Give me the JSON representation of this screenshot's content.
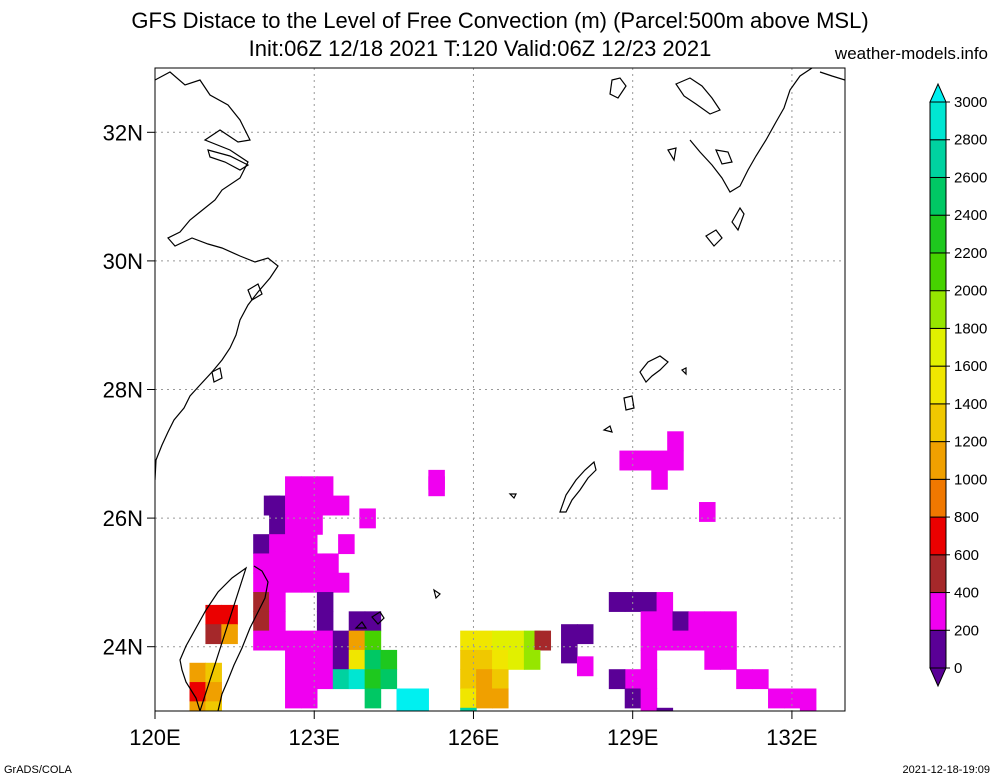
{
  "title_line1": "GFS Distace to the Level of Free Convection (m) (Parcel:500m above MSL)",
  "title_line2": "Init:06Z 12/18 2021 T:120 Valid:06Z 12/23 2021",
  "site": "weather-models.info",
  "footer_left": "GrADS/COLA",
  "footer_right": "2021-12-18-19:09",
  "chart_data": {
    "type": "heatmap",
    "title": "GFS Distace to the Level of Free Convection (m) (Parcel:500m above MSL)",
    "subtitle": "Init:06Z 12/18 2021 T:120 Valid:06Z 12/23 2021",
    "x_axis": {
      "range": [
        120,
        133
      ],
      "ticks": [
        120,
        123,
        126,
        129,
        132
      ],
      "tick_labels": [
        "120E",
        "123E",
        "126E",
        "129E",
        "132E"
      ]
    },
    "y_axis": {
      "range": [
        23,
        33
      ],
      "ticks": [
        24,
        26,
        28,
        30,
        32
      ],
      "tick_labels": [
        "24N",
        "26N",
        "28N",
        "30N",
        "32N"
      ]
    },
    "grid": true,
    "colorbar": {
      "placement": "right",
      "levels": [
        0,
        200,
        400,
        600,
        800,
        1000,
        1200,
        1400,
        1600,
        1800,
        2000,
        2200,
        2400,
        2600,
        2800,
        3000
      ],
      "tick_labels": [
        "0",
        "200",
        "400",
        "600",
        "800",
        "1000",
        "1200",
        "1400",
        "1600",
        "1800",
        "2000",
        "2200",
        "2400",
        "2600",
        "2800",
        "3000"
      ],
      "colors": [
        "#5a0096",
        "#f000f0",
        "#a5282a",
        "#eb0000",
        "#f07800",
        "#f0a000",
        "#f0c800",
        "#f0e600",
        "#e1f000",
        "#96e600",
        "#46d200",
        "#1ec81e",
        "#00c864",
        "#00d2a0",
        "#00e6d2",
        "#00f0f0"
      ]
    },
    "cells": [
      {
        "lon": 122.6,
        "lat": 26.5,
        "value": 200
      },
      {
        "lon": 122.9,
        "lat": 26.5,
        "value": 200
      },
      {
        "lon": 123.2,
        "lat": 26.5,
        "value": 300
      },
      {
        "lon": 122.3,
        "lat": 26.2,
        "value": 100
      },
      {
        "lon": 122.6,
        "lat": 26.2,
        "value": 200
      },
      {
        "lon": 122.9,
        "lat": 26.2,
        "value": 200
      },
      {
        "lon": 123.2,
        "lat": 26.2,
        "value": 200
      },
      {
        "lon": 123.5,
        "lat": 26.2,
        "value": 200
      },
      {
        "lon": 122.3,
        "lat": 25.9,
        "value": 100
      },
      {
        "lon": 122.6,
        "lat": 25.9,
        "value": 200
      },
      {
        "lon": 122.9,
        "lat": 25.9,
        "value": 200
      },
      {
        "lon": 122.0,
        "lat": 25.6,
        "value": 100
      },
      {
        "lon": 122.3,
        "lat": 25.6,
        "value": 200
      },
      {
        "lon": 122.6,
        "lat": 25.6,
        "value": 200
      },
      {
        "lon": 122.9,
        "lat": 25.6,
        "value": 200
      },
      {
        "lon": 122.0,
        "lat": 25.3,
        "value": 200
      },
      {
        "lon": 122.3,
        "lat": 25.3,
        "value": 300
      },
      {
        "lon": 122.6,
        "lat": 25.3,
        "value": 200
      },
      {
        "lon": 122.9,
        "lat": 25.3,
        "value": 200
      },
      {
        "lon": 123.2,
        "lat": 25.3,
        "value": 200
      },
      {
        "lon": 122.0,
        "lat": 25.0,
        "value": 300
      },
      {
        "lon": 122.3,
        "lat": 25.0,
        "value": 300
      },
      {
        "lon": 122.6,
        "lat": 25.0,
        "value": 300
      },
      {
        "lon": 122.9,
        "lat": 25.0,
        "value": 200
      },
      {
        "lon": 123.2,
        "lat": 25.0,
        "value": 200
      },
      {
        "lon": 123.5,
        "lat": 25.0,
        "value": 200
      },
      {
        "lon": 122.0,
        "lat": 24.7,
        "value": 500
      },
      {
        "lon": 122.3,
        "lat": 24.7,
        "value": 300
      },
      {
        "lon": 123.2,
        "lat": 24.7,
        "value": 100
      },
      {
        "lon": 122.0,
        "lat": 24.4,
        "value": 400
      },
      {
        "lon": 122.3,
        "lat": 24.4,
        "value": 300
      },
      {
        "lon": 123.2,
        "lat": 24.4,
        "value": 100
      },
      {
        "lon": 123.8,
        "lat": 24.4,
        "value": 100
      },
      {
        "lon": 124.1,
        "lat": 24.4,
        "value": 100
      },
      {
        "lon": 122.0,
        "lat": 24.1,
        "value": 300
      },
      {
        "lon": 122.3,
        "lat": 24.1,
        "value": 300
      },
      {
        "lon": 122.6,
        "lat": 24.1,
        "value": 200
      },
      {
        "lon": 122.9,
        "lat": 24.1,
        "value": 200
      },
      {
        "lon": 123.2,
        "lat": 24.1,
        "value": 200
      },
      {
        "lon": 123.5,
        "lat": 24.1,
        "value": 100
      },
      {
        "lon": 123.8,
        "lat": 24.1,
        "value": 1000
      },
      {
        "lon": 124.1,
        "lat": 24.1,
        "value": 2000
      },
      {
        "lon": 122.6,
        "lat": 23.8,
        "value": 300
      },
      {
        "lon": 122.9,
        "lat": 23.8,
        "value": 200
      },
      {
        "lon": 123.2,
        "lat": 23.8,
        "value": 200
      },
      {
        "lon": 123.5,
        "lat": 23.8,
        "value": 100
      },
      {
        "lon": 123.8,
        "lat": 23.8,
        "value": 1400
      },
      {
        "lon": 124.1,
        "lat": 23.8,
        "value": 2400
      },
      {
        "lon": 124.4,
        "lat": 23.8,
        "value": 2200
      },
      {
        "lon": 122.6,
        "lat": 23.5,
        "value": 300
      },
      {
        "lon": 122.9,
        "lat": 23.5,
        "value": 300
      },
      {
        "lon": 123.2,
        "lat": 23.5,
        "value": 200
      },
      {
        "lon": 123.5,
        "lat": 23.5,
        "value": 2600
      },
      {
        "lon": 123.8,
        "lat": 23.5,
        "value": 2800
      },
      {
        "lon": 124.1,
        "lat": 23.5,
        "value": 2200
      },
      {
        "lon": 124.4,
        "lat": 23.5,
        "value": 2400
      },
      {
        "lon": 122.6,
        "lat": 23.2,
        "value": 300
      },
      {
        "lon": 122.9,
        "lat": 23.2,
        "value": 300
      },
      {
        "lon": 124.1,
        "lat": 23.2,
        "value": 2400
      },
      {
        "lon": 124.7,
        "lat": 23.2,
        "value": 3000
      },
      {
        "lon": 125.0,
        "lat": 23.2,
        "value": 3000
      },
      {
        "lon": 124.7,
        "lat": 22.9,
        "value": 3000
      },
      {
        "lon": 125.0,
        "lat": 22.9,
        "value": 3000
      },
      {
        "lon": 121.1,
        "lat": 24.5,
        "value": 600
      },
      {
        "lon": 121.4,
        "lat": 24.5,
        "value": 600
      },
      {
        "lon": 121.1,
        "lat": 24.2,
        "value": 400
      },
      {
        "lon": 121.4,
        "lat": 24.2,
        "value": 1000
      },
      {
        "lon": 120.8,
        "lat": 23.6,
        "value": 1000
      },
      {
        "lon": 121.1,
        "lat": 23.6,
        "value": 1200
      },
      {
        "lon": 120.8,
        "lat": 23.3,
        "value": 600
      },
      {
        "lon": 121.1,
        "lat": 23.3,
        "value": 1000
      },
      {
        "lon": 120.8,
        "lat": 23.0,
        "value": 1000
      },
      {
        "lon": 121.1,
        "lat": 23.0,
        "value": 1200
      },
      {
        "lon": 122.2,
        "lat": 26.2,
        "value": 100
      },
      {
        "lon": 123.0,
        "lat": 25.9,
        "value": 200
      },
      {
        "lon": 124.0,
        "lat": 26.0,
        "value": 200
      },
      {
        "lon": 123.6,
        "lat": 25.6,
        "value": 200
      },
      {
        "lon": 123.3,
        "lat": 25.3,
        "value": 200
      },
      {
        "lon": 125.3,
        "lat": 26.6,
        "value": 300
      },
      {
        "lon": 125.3,
        "lat": 26.5,
        "value": 200
      },
      {
        "lon": 125.9,
        "lat": 24.1,
        "value": 1400
      },
      {
        "lon": 126.2,
        "lat": 24.1,
        "value": 1500
      },
      {
        "lon": 126.5,
        "lat": 24.1,
        "value": 1600
      },
      {
        "lon": 126.8,
        "lat": 24.1,
        "value": 1700
      },
      {
        "lon": 127.1,
        "lat": 24.1,
        "value": 1800
      },
      {
        "lon": 127.3,
        "lat": 24.1,
        "value": 500
      },
      {
        "lon": 125.9,
        "lat": 23.8,
        "value": 1300
      },
      {
        "lon": 126.2,
        "lat": 23.8,
        "value": 1200
      },
      {
        "lon": 126.5,
        "lat": 23.8,
        "value": 1400
      },
      {
        "lon": 126.8,
        "lat": 23.8,
        "value": 1700
      },
      {
        "lon": 127.1,
        "lat": 23.8,
        "value": 1800
      },
      {
        "lon": 125.9,
        "lat": 23.5,
        "value": 1200
      },
      {
        "lon": 126.2,
        "lat": 23.5,
        "value": 1100
      },
      {
        "lon": 126.5,
        "lat": 23.5,
        "value": 1200
      },
      {
        "lon": 125.9,
        "lat": 23.2,
        "value": 1400
      },
      {
        "lon": 126.2,
        "lat": 23.2,
        "value": 1100
      },
      {
        "lon": 126.5,
        "lat": 23.2,
        "value": 1100
      },
      {
        "lon": 125.9,
        "lat": 22.9,
        "value": 2600
      },
      {
        "lon": 127.8,
        "lat": 24.2,
        "value": 100
      },
      {
        "lon": 128.1,
        "lat": 24.2,
        "value": 100
      },
      {
        "lon": 127.8,
        "lat": 23.9,
        "value": 100
      },
      {
        "lon": 128.1,
        "lat": 23.7,
        "value": 200
      },
      {
        "lon": 128.7,
        "lat": 24.7,
        "value": 100
      },
      {
        "lon": 129.0,
        "lat": 24.7,
        "value": 100
      },
      {
        "lon": 129.3,
        "lat": 24.7,
        "value": 100
      },
      {
        "lon": 129.6,
        "lat": 24.7,
        "value": 200
      },
      {
        "lon": 129.3,
        "lat": 24.4,
        "value": 200
      },
      {
        "lon": 129.6,
        "lat": 24.4,
        "value": 200
      },
      {
        "lon": 129.9,
        "lat": 24.4,
        "value": 100
      },
      {
        "lon": 130.2,
        "lat": 24.4,
        "value": 300
      },
      {
        "lon": 130.5,
        "lat": 24.4,
        "value": 300
      },
      {
        "lon": 130.8,
        "lat": 24.4,
        "value": 300
      },
      {
        "lon": 129.3,
        "lat": 24.1,
        "value": 300
      },
      {
        "lon": 129.6,
        "lat": 24.1,
        "value": 200
      },
      {
        "lon": 129.9,
        "lat": 24.1,
        "value": 200
      },
      {
        "lon": 130.2,
        "lat": 24.1,
        "value": 300
      },
      {
        "lon": 130.5,
        "lat": 24.1,
        "value": 300
      },
      {
        "lon": 130.8,
        "lat": 24.1,
        "value": 300
      },
      {
        "lon": 130.5,
        "lat": 23.8,
        "value": 300
      },
      {
        "lon": 130.8,
        "lat": 23.8,
        "value": 300
      },
      {
        "lon": 129.0,
        "lat": 23.5,
        "value": 200
      },
      {
        "lon": 128.7,
        "lat": 23.5,
        "value": 100
      },
      {
        "lon": 129.0,
        "lat": 23.2,
        "value": 100
      },
      {
        "lon": 129.3,
        "lat": 23.8,
        "value": 200
      },
      {
        "lon": 129.3,
        "lat": 23.5,
        "value": 200
      },
      {
        "lon": 129.3,
        "lat": 23.2,
        "value": 200
      },
      {
        "lon": 129.3,
        "lat": 22.9,
        "value": 200
      },
      {
        "lon": 129.6,
        "lat": 22.9,
        "value": 100
      },
      {
        "lon": 131.1,
        "lat": 23.5,
        "value": 300
      },
      {
        "lon": 131.4,
        "lat": 23.5,
        "value": 300
      },
      {
        "lon": 131.7,
        "lat": 23.2,
        "value": 300
      },
      {
        "lon": 132.0,
        "lat": 23.2,
        "value": 300
      },
      {
        "lon": 132.3,
        "lat": 23.2,
        "value": 200
      },
      {
        "lon": 132.3,
        "lat": 22.9,
        "value": 300
      },
      {
        "lon": 128.9,
        "lat": 26.9,
        "value": 200
      },
      {
        "lon": 129.2,
        "lat": 26.9,
        "value": 300
      },
      {
        "lon": 129.5,
        "lat": 26.9,
        "value": 300
      },
      {
        "lon": 129.8,
        "lat": 26.9,
        "value": 300
      },
      {
        "lon": 129.8,
        "lat": 27.2,
        "value": 300
      },
      {
        "lon": 129.5,
        "lat": 26.6,
        "value": 300
      },
      {
        "lon": 130.4,
        "lat": 26.1,
        "value": 300
      }
    ]
  }
}
